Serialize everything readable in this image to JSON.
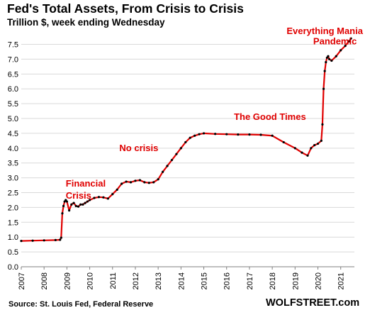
{
  "header": {
    "title": "Fed's Total Assets, From Crisis to Crisis",
    "subtitle": "Trillion $, week ending Wednesday"
  },
  "footer": {
    "source": "Source: St. Louis Fed, Federal Reserve",
    "brand": "WOLFSTREET.com"
  },
  "colors": {
    "line": "#000000",
    "line_highlight": "#e00000",
    "annotation": "#e00000",
    "grid": "#d9d9d9"
  },
  "chart_data": {
    "type": "line",
    "title": "Fed's Total Assets, From Crisis to Crisis",
    "subtitle": "Trillion $, week ending Wednesday",
    "xlabel": "",
    "ylabel": "",
    "xlim": [
      2007,
      2021.6
    ],
    "ylim": [
      0,
      7.8
    ],
    "y_ticks": [
      "0.0",
      "0.5",
      "1.0",
      "1.5",
      "2.0",
      "2.5",
      "3.0",
      "3.5",
      "4.0",
      "4.5",
      "5.0",
      "5.5",
      "6.0",
      "6.5",
      "7.0",
      "7.5"
    ],
    "x_ticks": [
      "2007",
      "2008",
      "2009",
      "2010",
      "2011",
      "2012",
      "2013",
      "2014",
      "2015",
      "2016",
      "2017",
      "2018",
      "2019",
      "2020",
      "2021"
    ],
    "grid": "horizontal",
    "series": [
      {
        "x": [
          2007.0,
          2007.5,
          2008.0,
          2008.5,
          2008.7,
          2008.75,
          2008.8,
          2008.85,
          2008.9,
          2008.95,
          2009.0,
          2009.1,
          2009.2,
          2009.3,
          2009.4,
          2009.5,
          2009.6,
          2009.7,
          2009.8,
          2009.9,
          2010.0,
          2010.2,
          2010.4,
          2010.6,
          2010.8,
          2011.0,
          2011.2,
          2011.4,
          2011.6,
          2011.8,
          2012.0,
          2012.2,
          2012.4,
          2012.6,
          2012.8,
          2013.0,
          2013.2,
          2013.4,
          2013.6,
          2013.8,
          2014.0,
          2014.2,
          2014.4,
          2014.6,
          2014.8,
          2015.0,
          2015.5,
          2016.0,
          2016.5,
          2017.0,
          2017.5,
          2018.0,
          2018.5,
          2019.0,
          2019.3,
          2019.55,
          2019.7,
          2019.85,
          2020.0,
          2020.15,
          2020.2,
          2020.25,
          2020.3,
          2020.35,
          2020.4,
          2020.45,
          2020.5,
          2020.6,
          2020.8,
          2021.0,
          2021.2,
          2021.35,
          2021.45
        ],
        "y": [
          0.87,
          0.88,
          0.89,
          0.9,
          0.91,
          0.98,
          1.8,
          2.05,
          2.2,
          2.25,
          2.2,
          1.9,
          2.1,
          2.15,
          2.05,
          2.03,
          2.1,
          2.1,
          2.15,
          2.2,
          2.25,
          2.32,
          2.35,
          2.34,
          2.3,
          2.45,
          2.6,
          2.8,
          2.87,
          2.85,
          2.9,
          2.92,
          2.85,
          2.83,
          2.85,
          2.95,
          3.2,
          3.4,
          3.6,
          3.8,
          4.0,
          4.2,
          4.35,
          4.42,
          4.47,
          4.5,
          4.48,
          4.47,
          4.46,
          4.46,
          4.45,
          4.42,
          4.2,
          4.0,
          3.85,
          3.75,
          4.0,
          4.1,
          4.15,
          4.25,
          4.8,
          6.0,
          6.6,
          6.9,
          7.05,
          7.1,
          7.0,
          6.95,
          7.1,
          7.3,
          7.45,
          7.6,
          7.7
        ]
      }
    ],
    "annotations": [
      {
        "label": "Financial",
        "x": 2008.95,
        "y": 2.7
      },
      {
        "label": "Crisis",
        "x": 2008.95,
        "y": 2.3
      },
      {
        "label": "No crisis",
        "x": 2011.3,
        "y": 3.9
      },
      {
        "label": "The Good Times",
        "x": 2017.9,
        "y": 4.95
      },
      {
        "label": "Everything Mania",
        "x": 2020.3,
        "y": 7.85
      },
      {
        "label": "Pandemic",
        "x": 2020.75,
        "y": 7.5
      }
    ]
  }
}
